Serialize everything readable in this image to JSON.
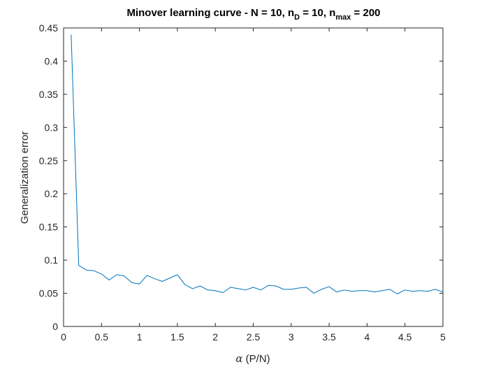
{
  "chart_data": {
    "type": "line",
    "title": {
      "prefix": "Minover learning curve - N = 10, n",
      "sub1": "D",
      "middle": " = 10, n",
      "sub2": "max",
      "suffix": " = 200"
    },
    "xlabel": {
      "symbol": "α",
      "text": " (P/N)"
    },
    "ylabel": "Generalization error",
    "xlim": [
      0,
      5
    ],
    "ylim": [
      0,
      0.45
    ],
    "xticks": [
      {
        "value": 0,
        "label": "0"
      },
      {
        "value": 0.5,
        "label": "0.5"
      },
      {
        "value": 1,
        "label": "1"
      },
      {
        "value": 1.5,
        "label": "1.5"
      },
      {
        "value": 2,
        "label": "2"
      },
      {
        "value": 2.5,
        "label": "2.5"
      },
      {
        "value": 3,
        "label": "3"
      },
      {
        "value": 3.5,
        "label": "3.5"
      },
      {
        "value": 4,
        "label": "4"
      },
      {
        "value": 4.5,
        "label": "4.5"
      },
      {
        "value": 5,
        "label": "5"
      }
    ],
    "yticks": [
      {
        "value": 0,
        "label": "0"
      },
      {
        "value": 0.05,
        "label": "0.05"
      },
      {
        "value": 0.1,
        "label": "0.1"
      },
      {
        "value": 0.15,
        "label": "0.15"
      },
      {
        "value": 0.2,
        "label": "0.2"
      },
      {
        "value": 0.25,
        "label": "0.25"
      },
      {
        "value": 0.3,
        "label": "0.3"
      },
      {
        "value": 0.35,
        "label": "0.35"
      },
      {
        "value": 0.4,
        "label": "0.4"
      },
      {
        "value": 0.45,
        "label": "0.45"
      }
    ],
    "grid": false,
    "series": [
      {
        "color": "#0072bd",
        "x": [
          0.1,
          0.2,
          0.3,
          0.4,
          0.5,
          0.6,
          0.7,
          0.8,
          0.9,
          1.0,
          1.1,
          1.2,
          1.3,
          1.4,
          1.5,
          1.6,
          1.7,
          1.8,
          1.9,
          2.0,
          2.1,
          2.2,
          2.3,
          2.4,
          2.5,
          2.6,
          2.7,
          2.8,
          2.9,
          3.0,
          3.1,
          3.2,
          3.3,
          3.4,
          3.5,
          3.6,
          3.7,
          3.8,
          3.9,
          4.0,
          4.1,
          4.2,
          4.3,
          4.4,
          4.5,
          4.6,
          4.7,
          4.8,
          4.9,
          5.0
        ],
        "y": [
          0.44,
          0.092,
          0.085,
          0.084,
          0.079,
          0.07,
          0.078,
          0.076,
          0.066,
          0.064,
          0.077,
          0.072,
          0.068,
          0.073,
          0.078,
          0.063,
          0.057,
          0.061,
          0.055,
          0.054,
          0.051,
          0.059,
          0.057,
          0.055,
          0.059,
          0.055,
          0.062,
          0.061,
          0.056,
          0.056,
          0.058,
          0.059,
          0.05,
          0.056,
          0.06,
          0.052,
          0.055,
          0.053,
          0.054,
          0.054,
          0.052,
          0.054,
          0.056,
          0.049,
          0.055,
          0.053,
          0.054,
          0.053,
          0.056,
          0.052
        ]
      }
    ]
  }
}
